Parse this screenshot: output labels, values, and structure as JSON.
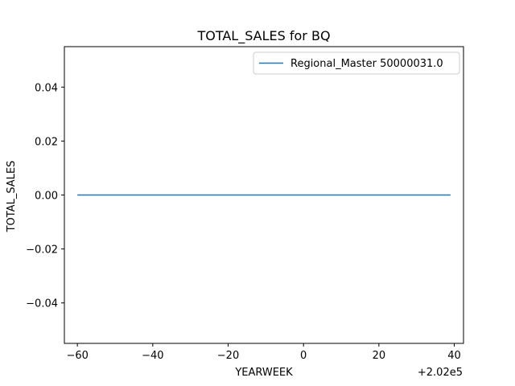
{
  "chart_data": {
    "type": "line",
    "title": "TOTAL_SALES for BQ",
    "xlabel": "YEARWEEK",
    "ylabel": "TOTAL_SALES",
    "x_offset_label": "+2.02e5",
    "xlim": [
      -63.45,
      42.45
    ],
    "ylim": [
      -0.055,
      0.055
    ],
    "xticks": [
      -60,
      -40,
      -20,
      0,
      20,
      40
    ],
    "xtick_labels": [
      "−60",
      "−40",
      "−20",
      "0",
      "20",
      "40"
    ],
    "yticks": [
      -0.04,
      -0.02,
      0.0,
      0.02,
      0.04
    ],
    "ytick_labels": [
      "−0.04",
      "−0.02",
      "0.00",
      "0.02",
      "0.04"
    ],
    "grid": false,
    "legend_position": "top-right",
    "series": [
      {
        "name": "Regional_Master 50000031.0",
        "color": "#1f77b4",
        "x": [
          -60,
          39
        ],
        "y": [
          0,
          0
        ]
      }
    ]
  }
}
